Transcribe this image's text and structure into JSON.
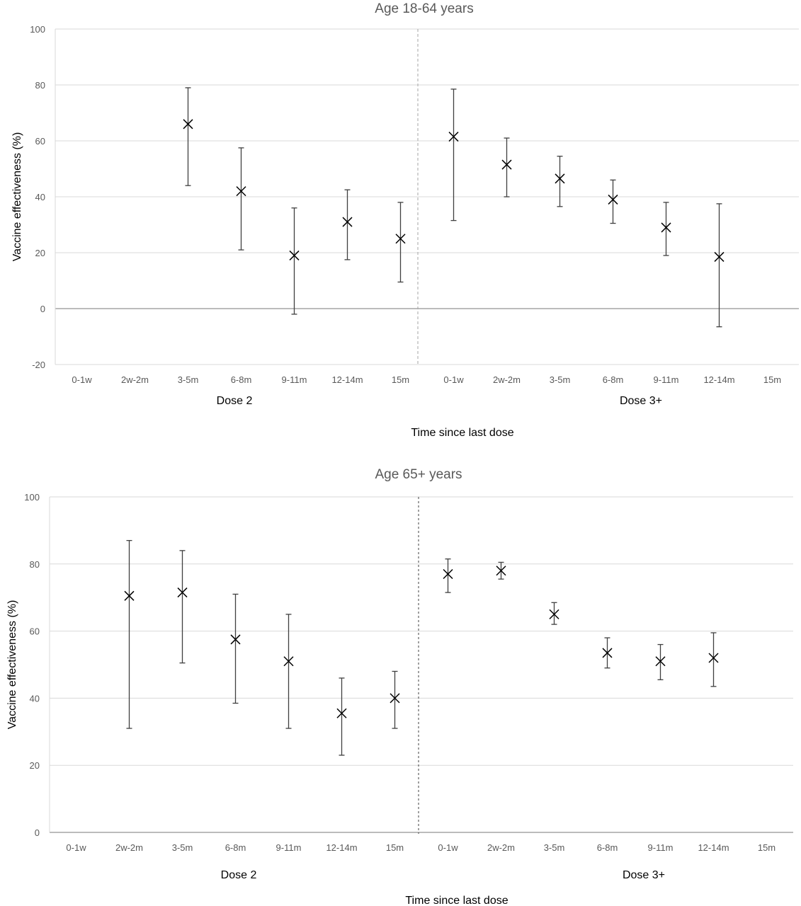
{
  "chart_data": [
    {
      "type": "errorbar",
      "title": "Age 18-64 years",
      "ylabel": "Vaccine effectiveness (%)",
      "xlabel": "Time since last dose",
      "ylim": [
        -20,
        100
      ],
      "yticks": [
        -20,
        0,
        20,
        40,
        60,
        80,
        100
      ],
      "grid": true,
      "categories": [
        "0-1w",
        "2w-2m",
        "3-5m",
        "6-8m",
        "9-11m",
        "12-14m",
        "15m",
        "0-1w",
        "2w-2m",
        "3-5m",
        "6-8m",
        "9-11m",
        "12-14m",
        "15m"
      ],
      "groups": [
        {
          "label": "Dose 2",
          "start": 0,
          "end": 6
        },
        {
          "label": "Dose 3+",
          "start": 7,
          "end": 13
        }
      ],
      "points": [
        null,
        null,
        {
          "value": 66,
          "lower": 44,
          "upper": 79
        },
        {
          "value": 42,
          "lower": 21,
          "upper": 57.5
        },
        {
          "value": 19,
          "lower": -2,
          "upper": 36
        },
        {
          "value": 31,
          "lower": 17.5,
          "upper": 42.5
        },
        {
          "value": 25,
          "lower": 9.5,
          "upper": 38
        },
        {
          "value": 61.5,
          "lower": 31.5,
          "upper": 78.5
        },
        {
          "value": 51.5,
          "lower": 40,
          "upper": 61
        },
        {
          "value": 46.5,
          "lower": 36.5,
          "upper": 54.5
        },
        {
          "value": 39,
          "lower": 30.5,
          "upper": 46
        },
        {
          "value": 29,
          "lower": 19,
          "upper": 38
        },
        {
          "value": 18.5,
          "lower": -6.5,
          "upper": 37.5
        },
        null
      ]
    },
    {
      "type": "errorbar",
      "title": "Age 65+ years",
      "ylabel": "Vaccine effectiveness (%)",
      "xlabel": "Time since last dose",
      "ylim": [
        0,
        100
      ],
      "yticks": [
        0,
        20,
        40,
        60,
        80,
        100
      ],
      "grid": true,
      "categories": [
        "0-1w",
        "2w-2m",
        "3-5m",
        "6-8m",
        "9-11m",
        "12-14m",
        "15m",
        "0-1w",
        "2w-2m",
        "3-5m",
        "6-8m",
        "9-11m",
        "12-14m",
        "15m"
      ],
      "groups": [
        {
          "label": "Dose 2",
          "start": 0,
          "end": 6
        },
        {
          "label": "Dose 3+",
          "start": 7,
          "end": 13
        }
      ],
      "points": [
        null,
        {
          "value": 70.5,
          "lower": 31,
          "upper": 87
        },
        {
          "value": 71.5,
          "lower": 50.5,
          "upper": 84
        },
        {
          "value": 57.5,
          "lower": 38.5,
          "upper": 71
        },
        {
          "value": 51,
          "lower": 31,
          "upper": 65
        },
        {
          "value": 35.5,
          "lower": 23,
          "upper": 46
        },
        {
          "value": 40,
          "lower": 31,
          "upper": 48
        },
        {
          "value": 77,
          "lower": 71.5,
          "upper": 81.5
        },
        {
          "value": 78,
          "lower": 75.5,
          "upper": 80.5
        },
        {
          "value": 65,
          "lower": 62,
          "upper": 68.5
        },
        {
          "value": 53.5,
          "lower": 49,
          "upper": 58
        },
        {
          "value": 51,
          "lower": 45.5,
          "upper": 56
        },
        {
          "value": 52,
          "lower": 43.5,
          "upper": 59.5
        },
        null
      ]
    }
  ]
}
